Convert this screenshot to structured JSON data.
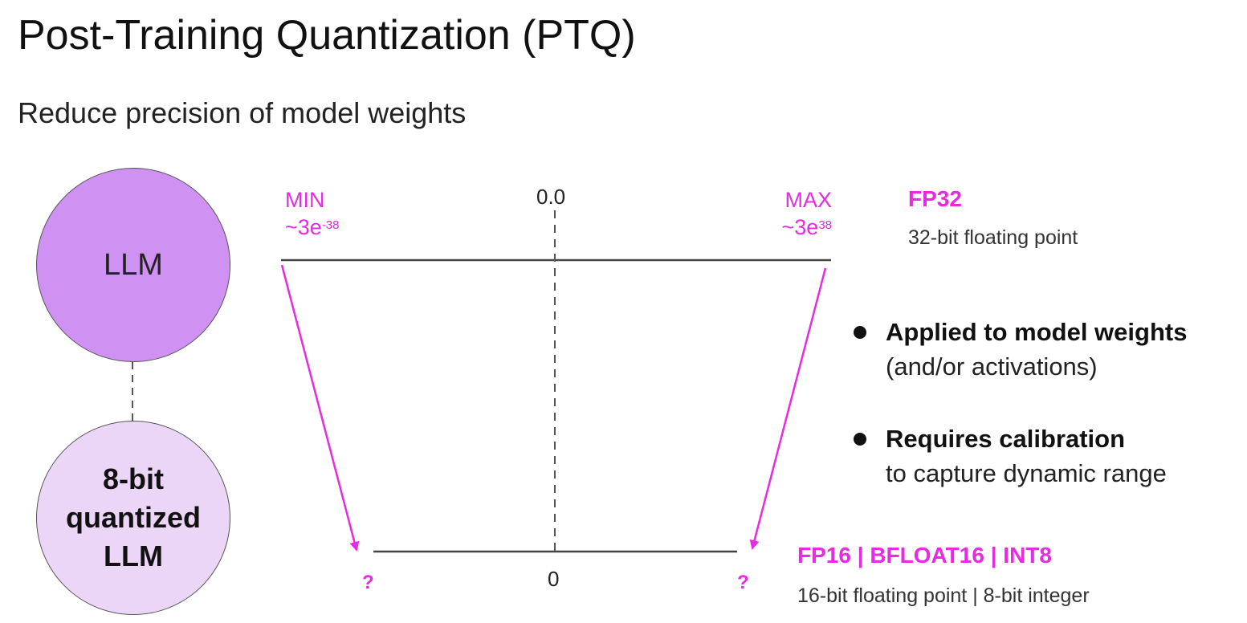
{
  "title": "Post-Training Quantization (PTQ)",
  "subtitle": "Reduce precision of model weights",
  "models": {
    "original": "LLM",
    "quantized": [
      "8-bit",
      "quantized",
      "LLM"
    ]
  },
  "top_range": {
    "min_label": "MIN",
    "min_value": "~3e",
    "min_exp": "-38",
    "zero_label": "0.0",
    "max_label": "MAX",
    "max_value": "~3e",
    "max_exp": "38",
    "format": "FP32",
    "format_desc": "32-bit floating point"
  },
  "bottom_range": {
    "left_unknown": "?",
    "zero_label": "0",
    "right_unknown": "?",
    "format": "FP16 | BFLOAT16 | INT8",
    "format_desc": "16-bit floating point | 8-bit integer"
  },
  "bullets": [
    {
      "head": "Applied to model weights",
      "detail": "(and/or activations)"
    },
    {
      "head": "Requires calibration",
      "detail": "to capture dynamic range"
    }
  ],
  "colors": {
    "accent": "#e62be0",
    "llm_fill": "#cf92f3",
    "quantized_fill": "#ecd6f8"
  }
}
